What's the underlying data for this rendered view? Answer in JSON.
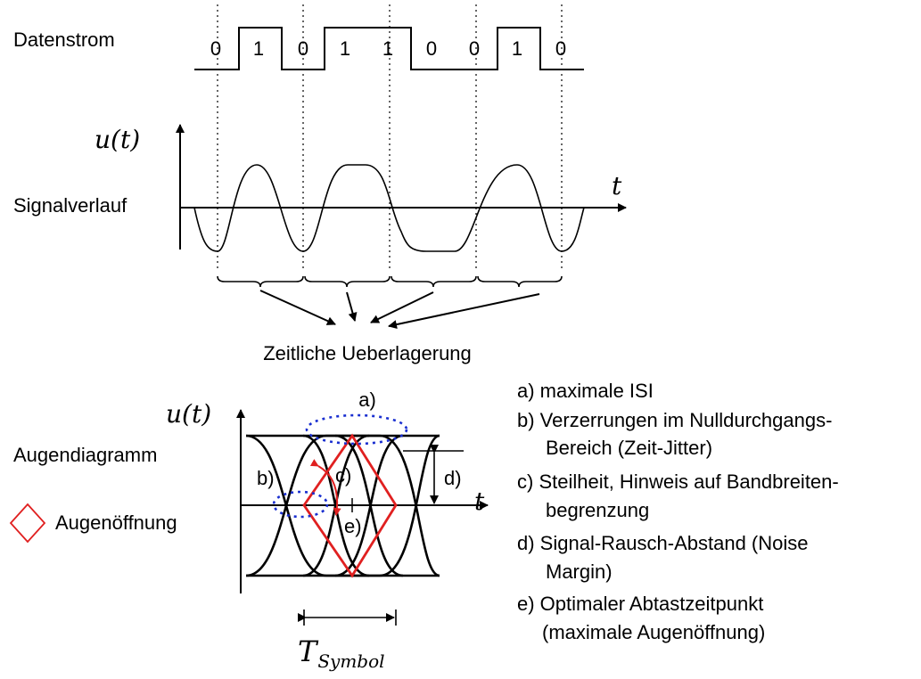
{
  "labels": {
    "datenstrom": "Datenstrom",
    "signalverlauf": "Signalverlauf",
    "augendiagramm": "Augendiagramm",
    "augenoeffnung": "Augenöffnung",
    "superposition": "Zeitliche Ueberlagerung"
  },
  "bits": [
    "0",
    "1",
    "0",
    "1",
    "1",
    "0",
    "0",
    "1",
    "0"
  ],
  "axes": {
    "signal_y": "u(t)",
    "signal_x": "t",
    "eye_y": "u(t)",
    "eye_x": "t",
    "symbol_base": "T",
    "symbol_sub": "Symbol"
  },
  "markers": {
    "a": "a)",
    "b": "b)",
    "c": "c)",
    "d": "d)",
    "e": "e)"
  },
  "legend": [
    "a) maximale ISI",
    "b) Verzerrungen im Nulldurchgangs-",
    "Bereich (Zeit-Jitter)",
    "c) Steilheit, Hinweis auf Bandbreiten-",
    "begrenzung",
    "d) Signal-Rausch-Abstand (Noise",
    "Margin)",
    "e) Optimaler Abtastzeitpunkt",
    "(maximale Augenöffnung)"
  ],
  "colors": {
    "ink": "#000000",
    "eye_opening": "#e02020",
    "jitter_marker": "#1a2fd0"
  }
}
